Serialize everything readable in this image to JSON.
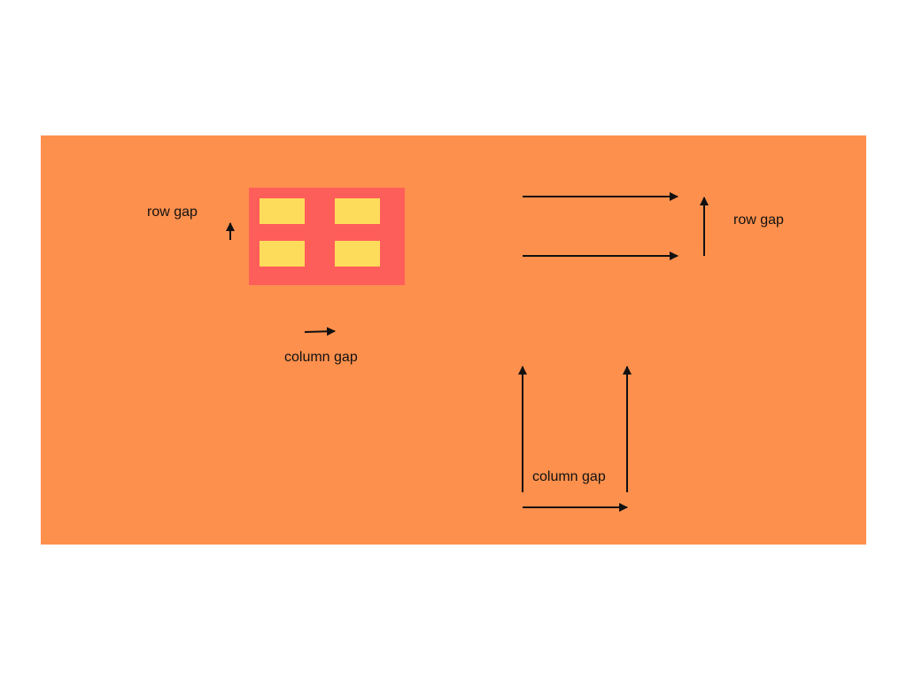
{
  "colors": {
    "page_background": "#ffffff",
    "slide_background": "#fe904d",
    "grid_container": "#fe5e5a",
    "grid_cell": "#fedc5b",
    "arrow": "#111111",
    "text": "#111111"
  },
  "left_example": {
    "row_gap_label": "row gap",
    "column_gap_label": "column gap",
    "grid_cells": 4
  },
  "right_example": {
    "row_gap_label": "row gap",
    "column_gap_label": "column gap"
  }
}
